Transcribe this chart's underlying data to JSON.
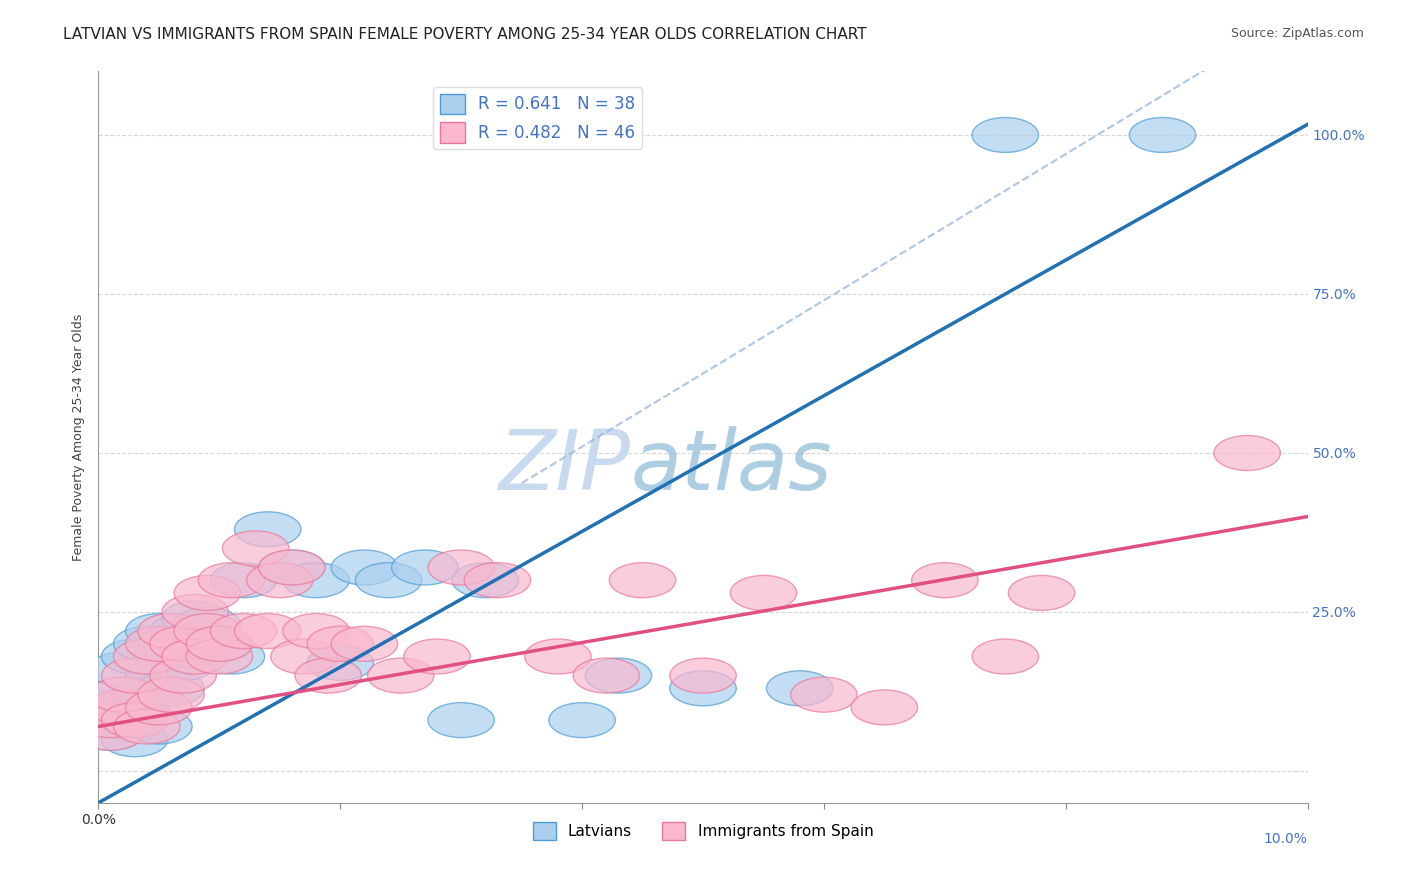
{
  "title": "LATVIAN VS IMMIGRANTS FROM SPAIN FEMALE POVERTY AMONG 25-34 YEAR OLDS CORRELATION CHART",
  "source": "Source: ZipAtlas.com",
  "ylabel": "Female Poverty Among 25-34 Year Olds",
  "xlim": [
    0.0,
    0.1
  ],
  "ylim": [
    -0.05,
    1.1
  ],
  "R_latvian": 0.641,
  "N_latvian": 38,
  "R_spain": 0.482,
  "N_spain": 46,
  "color_latvian_fill": "#aacfee",
  "color_latvian_edge": "#4e9cd4",
  "color_spain_fill": "#f9b8ce",
  "color_spain_edge": "#e8789a",
  "color_latvian_line": "#2171b5",
  "color_spain_line": "#e05080",
  "color_dashed": "#9ab8d8",
  "watermark_zip": "ZIP",
  "watermark_atlas": "atlas",
  "watermark_color_zip": "#c8daf0",
  "watermark_color_atlas": "#8ab8d8",
  "legend_label_latvian": "Latvians",
  "legend_label_spain": "Immigrants from Spain",
  "latvian_x": [
    0.001,
    0.001,
    0.002,
    0.002,
    0.002,
    0.003,
    0.003,
    0.003,
    0.004,
    0.004,
    0.005,
    0.005,
    0.005,
    0.006,
    0.006,
    0.007,
    0.007,
    0.008,
    0.008,
    0.009,
    0.01,
    0.011,
    0.012,
    0.014,
    0.016,
    0.018,
    0.02,
    0.022,
    0.024,
    0.027,
    0.03,
    0.032,
    0.04,
    0.043,
    0.05,
    0.058,
    0.075,
    0.088
  ],
  "latvian_y": [
    0.06,
    0.1,
    0.08,
    0.12,
    0.16,
    0.05,
    0.1,
    0.18,
    0.12,
    0.2,
    0.07,
    0.15,
    0.22,
    0.13,
    0.2,
    0.17,
    0.22,
    0.19,
    0.24,
    0.23,
    0.2,
    0.18,
    0.3,
    0.38,
    0.32,
    0.3,
    0.17,
    0.32,
    0.3,
    0.32,
    0.08,
    0.3,
    0.08,
    0.15,
    0.13,
    0.13,
    1.0,
    1.0
  ],
  "spain_x": [
    0.001,
    0.001,
    0.002,
    0.002,
    0.003,
    0.003,
    0.004,
    0.004,
    0.005,
    0.005,
    0.006,
    0.006,
    0.007,
    0.007,
    0.008,
    0.008,
    0.009,
    0.009,
    0.01,
    0.01,
    0.011,
    0.012,
    0.013,
    0.014,
    0.015,
    0.016,
    0.017,
    0.018,
    0.019,
    0.02,
    0.022,
    0.025,
    0.028,
    0.03,
    0.033,
    0.038,
    0.042,
    0.045,
    0.05,
    0.055,
    0.06,
    0.065,
    0.07,
    0.075,
    0.078,
    0.095
  ],
  "spain_y": [
    0.06,
    0.08,
    0.1,
    0.12,
    0.08,
    0.15,
    0.07,
    0.18,
    0.1,
    0.2,
    0.12,
    0.22,
    0.15,
    0.2,
    0.18,
    0.25,
    0.22,
    0.28,
    0.18,
    0.2,
    0.3,
    0.22,
    0.35,
    0.22,
    0.3,
    0.32,
    0.18,
    0.22,
    0.15,
    0.2,
    0.2,
    0.15,
    0.18,
    0.32,
    0.3,
    0.18,
    0.15,
    0.3,
    0.15,
    0.28,
    0.12,
    0.1,
    0.3,
    0.18,
    0.28,
    0.5
  ],
  "background_color": "#ffffff",
  "grid_color": "#cccccc",
  "title_fontsize": 11,
  "axis_label_fontsize": 9,
  "tick_fontsize": 10,
  "legend_fontsize": 12
}
